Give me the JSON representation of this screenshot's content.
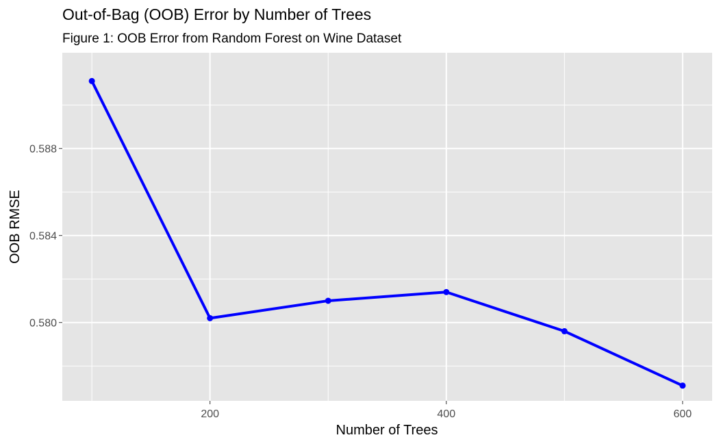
{
  "chart_data": {
    "type": "line",
    "title": "Out-of-Bag (OOB) Error by Number of Trees",
    "subtitle": "Figure 1: OOB Error from Random Forest on Wine Dataset",
    "xlabel": "Number of Trees",
    "ylabel": "OOB RMSE",
    "x": [
      100,
      200,
      300,
      400,
      500,
      600
    ],
    "series": [
      {
        "values": [
          0.5911,
          0.5802,
          0.581,
          0.5814,
          0.5796,
          0.5771
        ]
      }
    ],
    "xlim": [
      75,
      625
    ],
    "ylim": [
      0.5764,
      0.5924
    ],
    "x_ticks": [
      200,
      400,
      600
    ],
    "x_tick_labels": [
      "200",
      "400",
      "600"
    ],
    "y_ticks": [
      0.58,
      0.584,
      0.588
    ],
    "y_tick_labels": [
      "0.580",
      "0.584",
      "0.588"
    ],
    "grid": true,
    "legend": "none",
    "colors": {
      "line": "#0000ff",
      "panel_background": "#e5e5e5",
      "grid": "#ffffff",
      "tick_label": "#4d4d4d"
    }
  }
}
